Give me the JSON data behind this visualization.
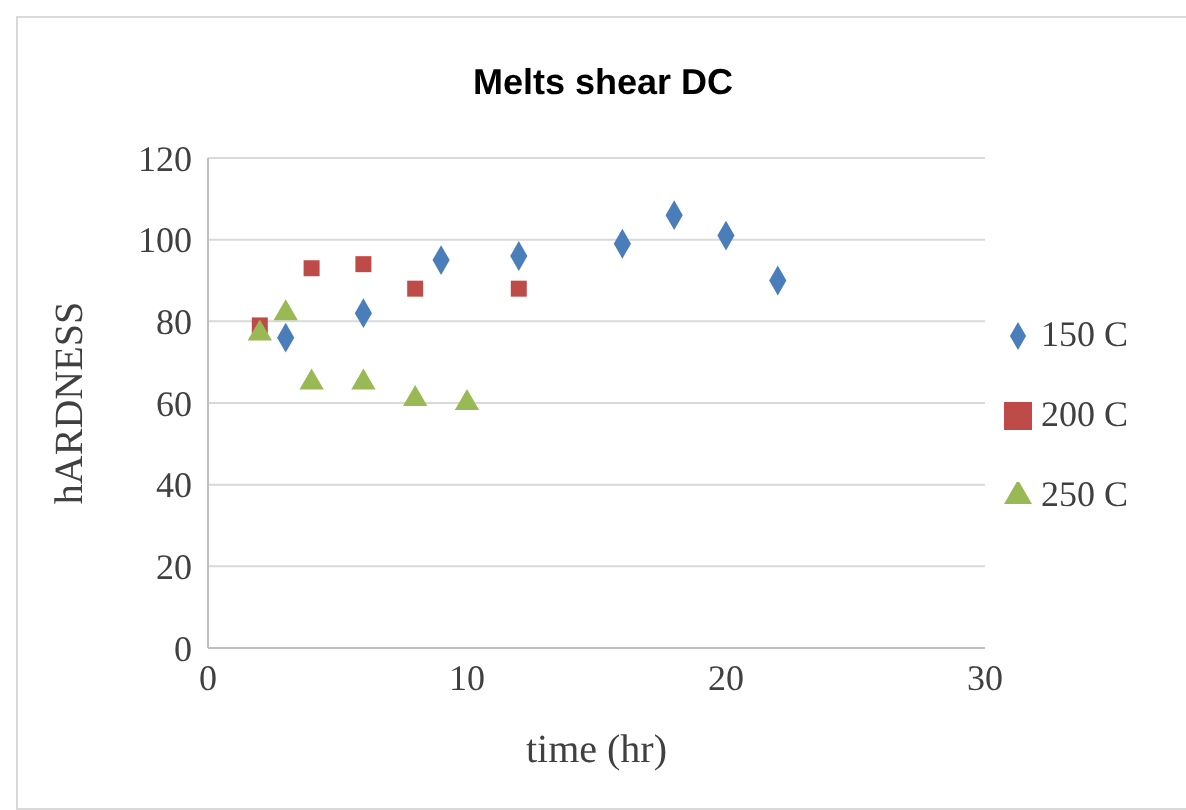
{
  "chart_data": {
    "type": "scatter",
    "title": "Melts shear DC",
    "xlabel": "time (hr)",
    "ylabel": "hARDNESS",
    "xlim": [
      0,
      30
    ],
    "xticks": [
      0,
      10,
      20,
      30
    ],
    "ylim": [
      0,
      120
    ],
    "yticks": [
      0,
      20,
      40,
      60,
      80,
      100,
      120
    ],
    "grid": "y",
    "legend": "right",
    "series": [
      {
        "name": "150 C",
        "color": "#4a7ebb",
        "marker": "diamond",
        "x": [
          3,
          6,
          9,
          12,
          16,
          18,
          20,
          22
        ],
        "values": [
          76,
          82,
          95,
          96,
          99,
          106,
          101,
          90
        ]
      },
      {
        "name": "200 C",
        "color": "#be4b48",
        "marker": "square",
        "x": [
          2,
          4,
          6,
          8,
          12
        ],
        "values": [
          79,
          93,
          94,
          88,
          88
        ]
      },
      {
        "name": "250 C",
        "color": "#98b954",
        "marker": "triangle",
        "x": [
          2,
          3,
          4,
          6,
          8,
          10
        ],
        "values": [
          77,
          82,
          65,
          65,
          61,
          60
        ]
      }
    ]
  }
}
